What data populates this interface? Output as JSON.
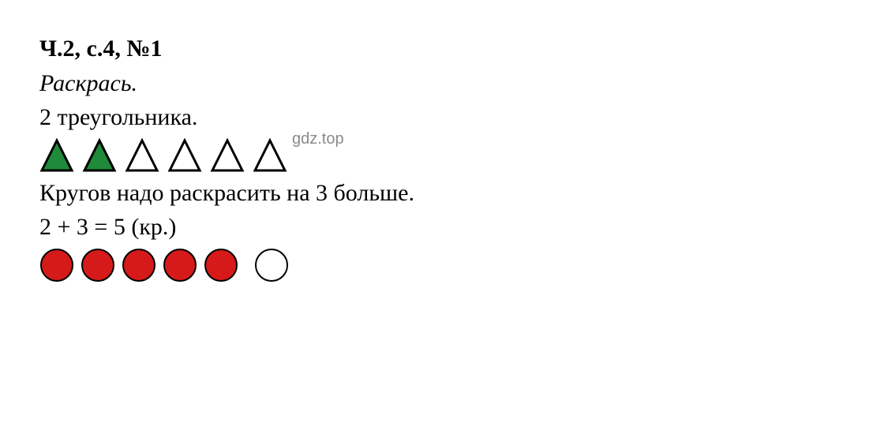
{
  "header": {
    "text": "Ч.2, с.4, №1",
    "fontweight": "bold"
  },
  "instruction": {
    "text": "Раскрась.",
    "fontstyle": "italic"
  },
  "triangles_line": {
    "text": "2 треугольника."
  },
  "triangles": {
    "type": "shapes-row",
    "shape": "triangle",
    "count": 6,
    "size": 44,
    "stroke": "#000000",
    "stroke_width": 3,
    "fills": [
      "#1f8a3a",
      "#1f8a3a",
      "#ffffff",
      "#ffffff",
      "#ffffff",
      "#ffffff"
    ],
    "gap": 10
  },
  "watermark": {
    "text": "gdz.top",
    "color": "#8a8a8a",
    "fontsize": 20
  },
  "circles_instruction": {
    "text": "Кругов надо раскрасить на 3 больше."
  },
  "equation": {
    "text": "2 + 3 = 5 (кр.)"
  },
  "circles": {
    "type": "shapes-row",
    "shape": "circle",
    "count": 6,
    "size": 44,
    "stroke": "#000000",
    "stroke_width": 2,
    "fills": [
      "#d61a1a",
      "#d61a1a",
      "#d61a1a",
      "#d61a1a",
      "#d61a1a",
      "#ffffff"
    ],
    "gap": 8,
    "extra_gap_before_last": 12
  }
}
